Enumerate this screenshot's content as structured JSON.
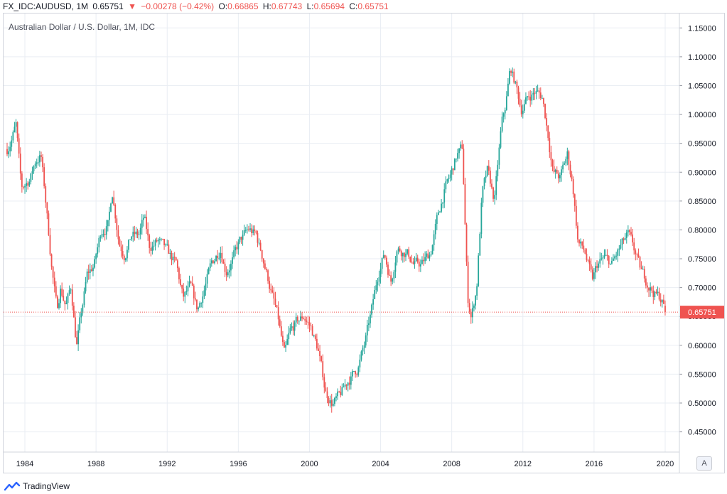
{
  "header": {
    "symbol": "FX_IDC:AUDUSD, 1M",
    "last": "0.65751",
    "arrow": "▼",
    "change": "−0.00278 (−0.42%)",
    "o_label": "O:",
    "o_value": "0.66865",
    "h_label": "H:",
    "h_value": "0.67743",
    "l_label": "L:",
    "l_value": "0.65694",
    "c_label": "C:",
    "c_value": "0.65751"
  },
  "subtitle": "Australian Dollar / U.S. Dollar, 1M, IDC",
  "price_tag": "0.65751",
  "auto_label": "A",
  "brand": "TradingView",
  "colors": {
    "up": "#26a69a",
    "down": "#ef5350",
    "grid": "#e9edf3",
    "axis_text": "#131722",
    "price_line": "#ef5350",
    "price_tag_bg": "#ef5350"
  },
  "chart_data": {
    "type": "line",
    "candlestick": true,
    "interval": "1M",
    "x_ticks": [
      "1984",
      "1988",
      "1992",
      "1996",
      "2000",
      "2004",
      "2008",
      "2012",
      "2016",
      "2020"
    ],
    "y_ticks": [
      "0.45000",
      "0.50000",
      "0.55000",
      "0.60000",
      "0.65000",
      "0.70000",
      "0.75000",
      "0.80000",
      "0.85000",
      "0.90000",
      "0.95000",
      "1.00000",
      "1.05000",
      "1.10000",
      "1.15000"
    ],
    "ylim": [
      0.415,
      1.175
    ],
    "xlim": [
      1982.8,
      2020.8
    ],
    "grid": true,
    "last_price": 0.65751,
    "series": [
      {
        "values": [
          [
            1983.0,
            0.94
          ],
          [
            1983.5,
            0.98
          ],
          [
            1983.8,
            0.87
          ],
          [
            1984.3,
            0.89
          ],
          [
            1984.6,
            0.92
          ],
          [
            1984.9,
            0.93
          ],
          [
            1985.2,
            0.84
          ],
          [
            1985.5,
            0.74
          ],
          [
            1985.8,
            0.66
          ],
          [
            1986.0,
            0.7
          ],
          [
            1986.3,
            0.67
          ],
          [
            1986.6,
            0.7
          ],
          [
            1986.9,
            0.6
          ],
          [
            1987.2,
            0.66
          ],
          [
            1987.5,
            0.72
          ],
          [
            1987.9,
            0.74
          ],
          [
            1988.3,
            0.8
          ],
          [
            1988.7,
            0.81
          ],
          [
            1988.9,
            0.87
          ],
          [
            1989.3,
            0.78
          ],
          [
            1989.6,
            0.76
          ],
          [
            1990.0,
            0.79
          ],
          [
            1990.4,
            0.79
          ],
          [
            1990.7,
            0.82
          ],
          [
            1991.0,
            0.77
          ],
          [
            1991.5,
            0.78
          ],
          [
            1992.0,
            0.76
          ],
          [
            1992.5,
            0.74
          ],
          [
            1992.9,
            0.68
          ],
          [
            1993.3,
            0.7
          ],
          [
            1993.7,
            0.66
          ],
          [
            1994.0,
            0.69
          ],
          [
            1994.5,
            0.74
          ],
          [
            1995.0,
            0.77
          ],
          [
            1995.3,
            0.73
          ],
          [
            1995.7,
            0.75
          ],
          [
            1996.1,
            0.78
          ],
          [
            1996.6,
            0.8
          ],
          [
            1997.0,
            0.79
          ],
          [
            1997.4,
            0.75
          ],
          [
            1997.8,
            0.7
          ],
          [
            1998.2,
            0.65
          ],
          [
            1998.6,
            0.58
          ],
          [
            1998.9,
            0.62
          ],
          [
            1999.3,
            0.64
          ],
          [
            1999.7,
            0.65
          ],
          [
            2000.1,
            0.63
          ],
          [
            2000.5,
            0.59
          ],
          [
            2000.9,
            0.52
          ],
          [
            2001.3,
            0.5
          ],
          [
            2001.7,
            0.51
          ],
          [
            2002.2,
            0.54
          ],
          [
            2002.7,
            0.56
          ],
          [
            2003.1,
            0.6
          ],
          [
            2003.5,
            0.66
          ],
          [
            2003.9,
            0.73
          ],
          [
            2004.2,
            0.76
          ],
          [
            2004.6,
            0.71
          ],
          [
            2004.9,
            0.77
          ],
          [
            2005.5,
            0.76
          ],
          [
            2005.9,
            0.74
          ],
          [
            2006.3,
            0.74
          ],
          [
            2006.8,
            0.76
          ],
          [
            2007.2,
            0.82
          ],
          [
            2007.6,
            0.87
          ],
          [
            2007.9,
            0.89
          ],
          [
            2008.3,
            0.93
          ],
          [
            2008.6,
            0.94
          ],
          [
            2008.9,
            0.68
          ],
          [
            2009.1,
            0.65
          ],
          [
            2009.4,
            0.7
          ],
          [
            2009.7,
            0.86
          ],
          [
            2010.0,
            0.9
          ],
          [
            2010.4,
            0.85
          ],
          [
            2010.8,
            0.98
          ],
          [
            2011.0,
            1.01
          ],
          [
            2011.3,
            1.08
          ],
          [
            2011.6,
            1.05
          ],
          [
            2011.9,
            1.01
          ],
          [
            2012.3,
            1.03
          ],
          [
            2012.7,
            1.04
          ],
          [
            2013.1,
            1.03
          ],
          [
            2013.4,
            0.97
          ],
          [
            2013.7,
            0.9
          ],
          [
            2014.1,
            0.89
          ],
          [
            2014.5,
            0.93
          ],
          [
            2014.8,
            0.88
          ],
          [
            2015.1,
            0.78
          ],
          [
            2015.5,
            0.76
          ],
          [
            2015.9,
            0.71
          ],
          [
            2016.2,
            0.74
          ],
          [
            2016.6,
            0.75
          ],
          [
            2017.0,
            0.74
          ],
          [
            2017.5,
            0.77
          ],
          [
            2017.9,
            0.79
          ],
          [
            2018.2,
            0.77
          ],
          [
            2018.6,
            0.73
          ],
          [
            2019.0,
            0.71
          ],
          [
            2019.4,
            0.69
          ],
          [
            2019.8,
            0.68
          ],
          [
            2020.0,
            0.65751
          ]
        ]
      }
    ]
  }
}
